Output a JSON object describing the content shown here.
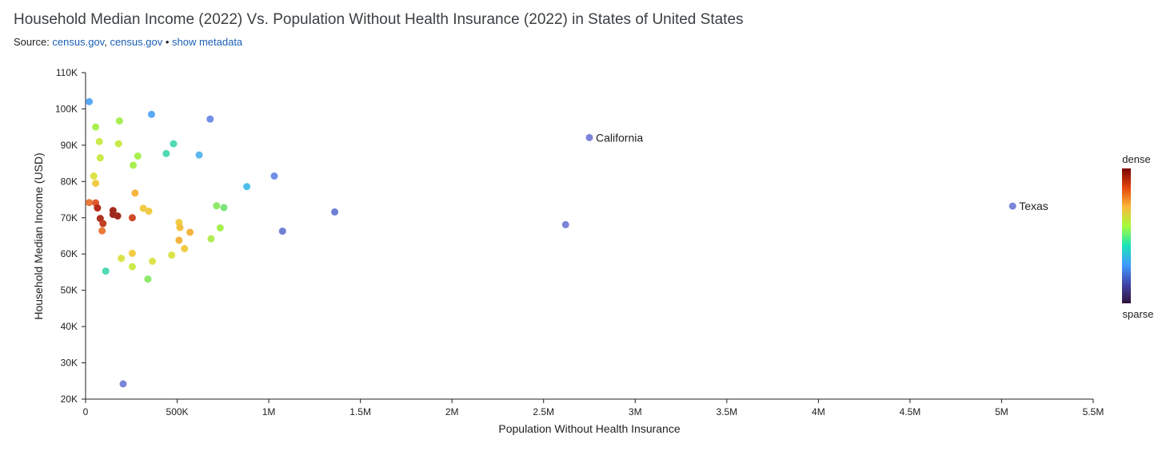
{
  "header": {
    "title": "Household Median Income (2022) Vs. Population Without Health Insurance (2022) in States of United States",
    "source_prefix": "Source: ",
    "source_link_1": "census.gov",
    "separator_comma": ", ",
    "source_link_2": "census.gov",
    "separator_dot": " • ",
    "metadata_link": "show metadata"
  },
  "legend": {
    "top_label": "dense",
    "bottom_label": "sparse",
    "gradient_colors": [
      "#7a0403",
      "#e4460a",
      "#fbb938",
      "#a4fc3c",
      "#1ae4b6",
      "#3e9bfe",
      "#4145ab",
      "#30123b"
    ]
  },
  "chart_data": {
    "type": "scatter",
    "title": "Household Median Income (2022) Vs. Population Without Health Insurance (2022) in States of United States",
    "xlabel": "Population Without Health Insurance",
    "ylabel": "Household Median Income (USD)",
    "xlim": [
      0,
      5500000
    ],
    "ylim": [
      20000,
      110000
    ],
    "x_ticks": [
      0,
      500000,
      1000000,
      1500000,
      2000000,
      2500000,
      3000000,
      3500000,
      4000000,
      4500000,
      5000000,
      5500000
    ],
    "x_tick_labels": [
      "0",
      "500K",
      "1M",
      "1.5M",
      "2M",
      "2.5M",
      "3M",
      "3.5M",
      "4M",
      "4.5M",
      "5M",
      "5.5M"
    ],
    "y_ticks": [
      20000,
      30000,
      40000,
      50000,
      60000,
      70000,
      80000,
      90000,
      100000,
      110000
    ],
    "y_tick_labels": [
      "20K",
      "30K",
      "40K",
      "50K",
      "60K",
      "70K",
      "80K",
      "90K",
      "100K",
      "110K"
    ],
    "grid": false,
    "points": [
      {
        "x": 20000,
        "y": 102000,
        "color": "#5ba8f5"
      },
      {
        "x": 360000,
        "y": 98500,
        "color": "#5ba8f5"
      },
      {
        "x": 680000,
        "y": 97200,
        "color": "#6f8fe8"
      },
      {
        "x": 55000,
        "y": 95000,
        "color": "#a8ef52"
      },
      {
        "x": 185000,
        "y": 96700,
        "color": "#a8ef52"
      },
      {
        "x": 75000,
        "y": 91000,
        "color": "#c9ea4a"
      },
      {
        "x": 180000,
        "y": 90400,
        "color": "#c9ea4a"
      },
      {
        "x": 480000,
        "y": 90400,
        "color": "#4fd9b4"
      },
      {
        "x": 80000,
        "y": 86500,
        "color": "#c9ea4a"
      },
      {
        "x": 285000,
        "y": 87000,
        "color": "#a8ef52"
      },
      {
        "x": 440000,
        "y": 87700,
        "color": "#4fd9b4"
      },
      {
        "x": 620000,
        "y": 87300,
        "color": "#5ab8ee"
      },
      {
        "x": 260000,
        "y": 84500,
        "color": "#a8ef52"
      },
      {
        "x": 45000,
        "y": 81500,
        "color": "#dce34a"
      },
      {
        "x": 55000,
        "y": 79500,
        "color": "#f2cb45"
      },
      {
        "x": 1030000,
        "y": 81500,
        "color": "#6f8fe8"
      },
      {
        "x": 880000,
        "y": 78600,
        "color": "#4ec0e8"
      },
      {
        "x": 270000,
        "y": 76800,
        "color": "#f7b43e"
      },
      {
        "x": 20000,
        "y": 74200,
        "color": "#ea7a3a"
      },
      {
        "x": 55000,
        "y": 74100,
        "color": "#e05a30"
      },
      {
        "x": 65000,
        "y": 72700,
        "color": "#b52b1a"
      },
      {
        "x": 150000,
        "y": 72000,
        "color": "#a1291b"
      },
      {
        "x": 150000,
        "y": 70900,
        "color": "#9c2a1c"
      },
      {
        "x": 175000,
        "y": 70500,
        "color": "#a1291b"
      },
      {
        "x": 255000,
        "y": 70000,
        "color": "#cf4b27"
      },
      {
        "x": 80000,
        "y": 69800,
        "color": "#b0311f"
      },
      {
        "x": 95000,
        "y": 68400,
        "color": "#c24020"
      },
      {
        "x": 315000,
        "y": 72600,
        "color": "#f2cb45"
      },
      {
        "x": 345000,
        "y": 71800,
        "color": "#f2cb45"
      },
      {
        "x": 715000,
        "y": 73300,
        "color": "#8ee86a"
      },
      {
        "x": 755000,
        "y": 72800,
        "color": "#7ce37a"
      },
      {
        "x": 1360000,
        "y": 71600,
        "color": "#6f7fd6"
      },
      {
        "x": 510000,
        "y": 68700,
        "color": "#f2cb45"
      },
      {
        "x": 515000,
        "y": 67300,
        "color": "#f4c03f"
      },
      {
        "x": 735000,
        "y": 67200,
        "color": "#a8ef52"
      },
      {
        "x": 90000,
        "y": 66400,
        "color": "#ea7a3a"
      },
      {
        "x": 570000,
        "y": 66000,
        "color": "#f4b43e"
      },
      {
        "x": 1075000,
        "y": 66300,
        "color": "#6f7fd6"
      },
      {
        "x": 2620000,
        "y": 68100,
        "color": "#7b85d8"
      },
      {
        "x": 685000,
        "y": 64200,
        "color": "#b3ec55"
      },
      {
        "x": 510000,
        "y": 63800,
        "color": "#f4b43e"
      },
      {
        "x": 540000,
        "y": 61500,
        "color": "#f2cb45"
      },
      {
        "x": 255000,
        "y": 60200,
        "color": "#f2cb45"
      },
      {
        "x": 470000,
        "y": 59700,
        "color": "#dce34a"
      },
      {
        "x": 195000,
        "y": 58800,
        "color": "#dce34a"
      },
      {
        "x": 365000,
        "y": 58000,
        "color": "#dce34a"
      },
      {
        "x": 255000,
        "y": 56500,
        "color": "#c9ea4a"
      },
      {
        "x": 110000,
        "y": 55300,
        "color": "#4fd9b4"
      },
      {
        "x": 340000,
        "y": 53100,
        "color": "#8ee86a"
      },
      {
        "x": 205000,
        "y": 24200,
        "color": "#7b85d8"
      },
      {
        "x": 2750000,
        "y": 92100,
        "color": "#7b85d8",
        "label": "California"
      },
      {
        "x": 5060000,
        "y": 73200,
        "color": "#7b85d8",
        "label": "Texas"
      }
    ]
  }
}
